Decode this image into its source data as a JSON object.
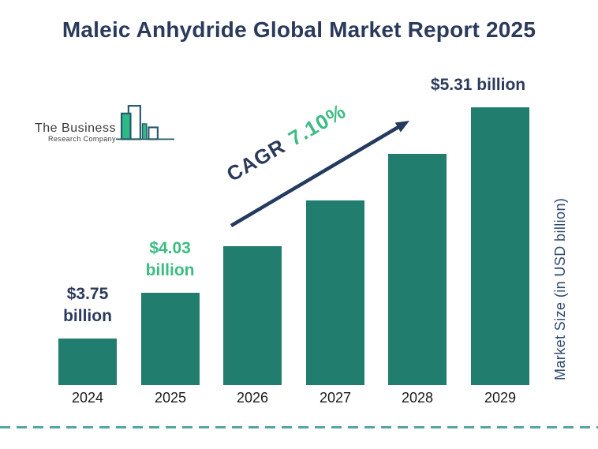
{
  "title": "Maleic Anhydride Global Market Report 2025",
  "logo": {
    "line1": "The Business",
    "line2": "Research Company"
  },
  "cagr_annotation": {
    "prefix": "CAGR",
    "value": "7.10%"
  },
  "y_axis_label": "Market Size (in USD billion)",
  "chart_data": {
    "type": "bar",
    "title": "Maleic Anhydride Global Market Report 2025",
    "categories": [
      "2024",
      "2025",
      "2026",
      "2027",
      "2028",
      "2029"
    ],
    "values": [
      3.75,
      4.03,
      4.32,
      4.62,
      4.95,
      5.31
    ],
    "value_labels": [
      {
        "bar_index": 0,
        "lines": [
          "$3.75",
          "billion"
        ],
        "color": "#2B3A5C"
      },
      {
        "bar_index": 1,
        "lines": [
          "$4.03",
          "billion"
        ],
        "color": "#3CBC82"
      },
      {
        "bar_index": 5,
        "lines": [
          "$5.31 billion"
        ],
        "color": "#2B3A5C"
      }
    ],
    "cagr": "7.10%",
    "xlabel": "",
    "ylabel": "Market Size (in USD billion)",
    "legend": false,
    "grid": false,
    "bar_color": "#217E6E"
  },
  "colors": {
    "navy": "#2B3A5C",
    "green": "#3CBC82",
    "bar_teal": "#217E6E",
    "dashed_line": "#55A5A5",
    "axis_text": "#1A1A1A",
    "arrow": "#243A5E",
    "logo_outline": "#24586B",
    "logo_fill": "#2DBA86"
  }
}
